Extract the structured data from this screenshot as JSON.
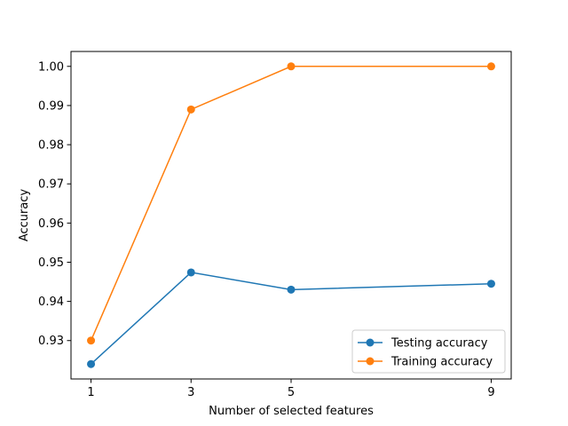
{
  "chart_data": {
    "type": "line",
    "title": "",
    "xlabel": "Number of selected features",
    "ylabel": "Accuracy",
    "x": [
      1,
      3,
      5,
      9
    ],
    "xticks": [
      1,
      3,
      5,
      9
    ],
    "xlim": [
      0.6,
      9.4
    ],
    "yticks": [
      0.93,
      0.94,
      0.95,
      0.96,
      0.97,
      0.98,
      0.99,
      1.0
    ],
    "ytick_labels": [
      "0.93",
      "0.94",
      "0.95",
      "0.96",
      "0.97",
      "0.98",
      "0.99",
      "1.00"
    ],
    "ylim": [
      0.9202,
      1.0038
    ],
    "grid": false,
    "legend_position": "lower-right",
    "series": [
      {
        "name": "Testing accuracy",
        "color": "#1f77b4",
        "values": [
          0.924,
          0.9474,
          0.943,
          0.9445
        ]
      },
      {
        "name": "Training accuracy",
        "color": "#ff7f0e",
        "values": [
          0.93,
          0.989,
          1.0,
          1.0
        ]
      }
    ]
  }
}
